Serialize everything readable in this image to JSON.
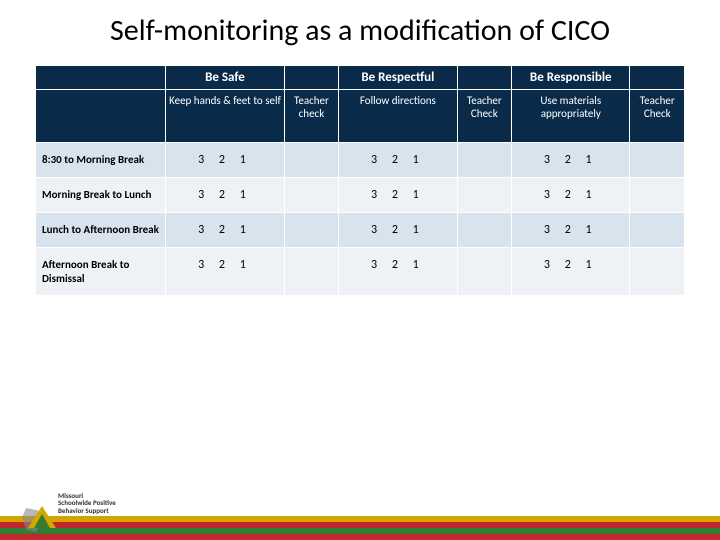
{
  "title": "Self-monitoring as a modification of CICO",
  "table": {
    "header_row1": {
      "safe": "Be Safe",
      "respectful": "Be Respectful",
      "responsible": "Be Responsible"
    },
    "header_row2": {
      "safe_sub": "Keep hands & feet to self",
      "teacher_check_lc": "Teacher check",
      "respectful_sub": "Follow directions",
      "teacher_check": "Teacher Check",
      "responsible_sub": "Use materials appropriately"
    },
    "rows": [
      {
        "label": "8:30 to Morning Break",
        "scores": [
          "3   2   1",
          "3   2   1",
          "3   2   1"
        ]
      },
      {
        "label": "Morning Break to Lunch",
        "scores": [
          "3   2   1",
          "3   2   1",
          "3   2   1"
        ]
      },
      {
        "label": "Lunch to Afternoon Break",
        "scores": [
          "3   2   1",
          "3   2   1",
          "3   2   1"
        ]
      },
      {
        "label": "Afternoon Break to Dismissal",
        "scores": [
          "3   2   1",
          "3   2   1",
          "3   2   1"
        ]
      }
    ]
  },
  "footer_stripes": [
    "#d4a400",
    "#c1272d",
    "#2e7d32",
    "#c1272d"
  ],
  "logo_text": "Missouri Schoolwide Positive Behavior Support",
  "colors": {
    "header_bg": "#0a2a4a",
    "row_even": "#d9e3ee",
    "row_odd": "#eef2f7"
  }
}
